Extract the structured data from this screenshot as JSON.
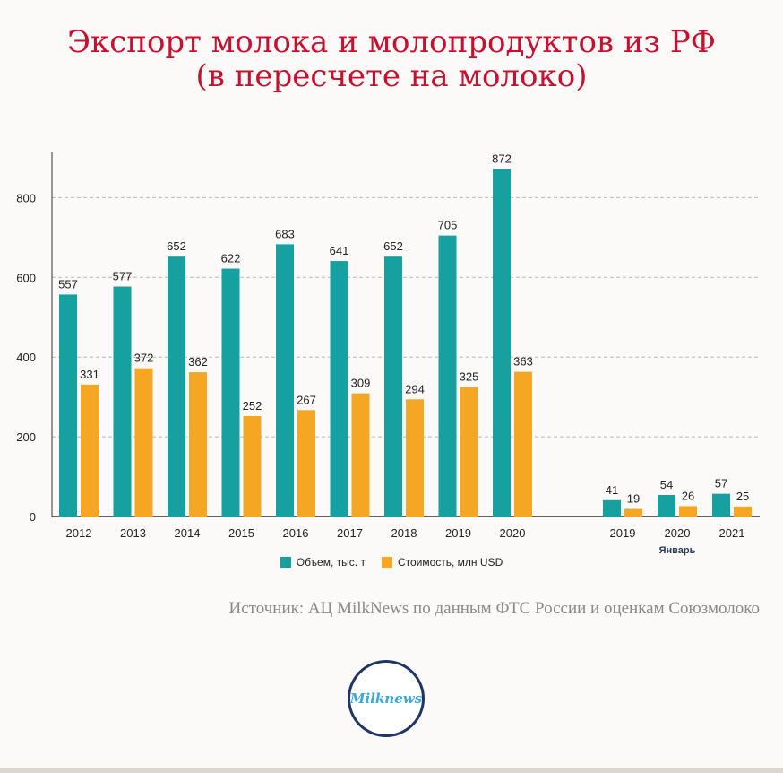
{
  "title": {
    "line1": "Экспорт молока и молопродуктов из РФ",
    "line2": "(в пересчете на молоко)"
  },
  "colors": {
    "volume": "#16a0a0",
    "cost": "#f5a623",
    "title": "#c8102e"
  },
  "legend": {
    "volume": "Объем, тыс. т",
    "cost": "Стоимость, млн USD"
  },
  "source": "Источник: АЦ MilkNews по данным ФТС России и оценкам Союзмолоко",
  "logo": {
    "text": "Milknews"
  },
  "chart_data": {
    "type": "bar",
    "ylim": [
      0,
      900
    ],
    "yticks": [
      0,
      200,
      400,
      600,
      800
    ],
    "grid": true,
    "legend_position": "bottom",
    "annual": {
      "categories": [
        "2012",
        "2013",
        "2014",
        "2015",
        "2016",
        "2017",
        "2018",
        "2019",
        "2020"
      ],
      "series": [
        {
          "name": "Объем, тыс. т",
          "values": [
            557,
            577,
            652,
            622,
            683,
            641,
            652,
            705,
            872
          ]
        },
        {
          "name": "Стоимость, млн USD",
          "values": [
            331,
            372,
            362,
            252,
            267,
            309,
            294,
            325,
            363
          ]
        }
      ]
    },
    "january": {
      "group_label": "Январь",
      "categories": [
        "2019",
        "2020",
        "2021"
      ],
      "series": [
        {
          "name": "Объем, тыс. т",
          "values": [
            41,
            54,
            57
          ]
        },
        {
          "name": "Стоимость, млн USD",
          "values": [
            19,
            26,
            25
          ]
        }
      ]
    }
  }
}
